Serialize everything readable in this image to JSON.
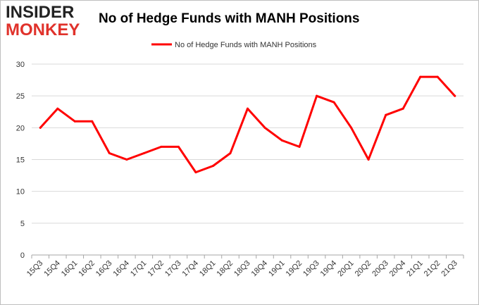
{
  "logo": {
    "line1": "INSIDER",
    "line2": "MONKEY"
  },
  "chart_data": {
    "type": "line",
    "title": "No of Hedge Funds with MANH Positions",
    "xlabel": "",
    "ylabel": "",
    "categories": [
      "15Q3",
      "15Q4",
      "16Q1",
      "16Q2",
      "16Q3",
      "16Q4",
      "17Q1",
      "17Q2",
      "17Q3",
      "17Q4",
      "18Q1",
      "18Q2",
      "18Q3",
      "18Q4",
      "19Q1",
      "19Q2",
      "19Q3",
      "19Q4",
      "20Q1",
      "20Q2",
      "20Q3",
      "20Q4",
      "21Q1",
      "21Q2",
      "21Q3"
    ],
    "series": [
      {
        "name": "No of Hedge Funds with MANH Positions",
        "color": "#ff0000",
        "values": [
          20,
          23,
          21,
          21,
          16,
          15,
          16,
          17,
          17,
          13,
          14,
          16,
          23,
          20,
          18,
          17,
          25,
          24,
          20,
          15,
          22,
          23,
          28,
          28,
          25
        ]
      }
    ],
    "ylim": [
      0,
      30
    ],
    "yticks": [
      "0",
      "5",
      "10",
      "15",
      "20",
      "25",
      "30"
    ],
    "grid": true,
    "legend": "top"
  }
}
